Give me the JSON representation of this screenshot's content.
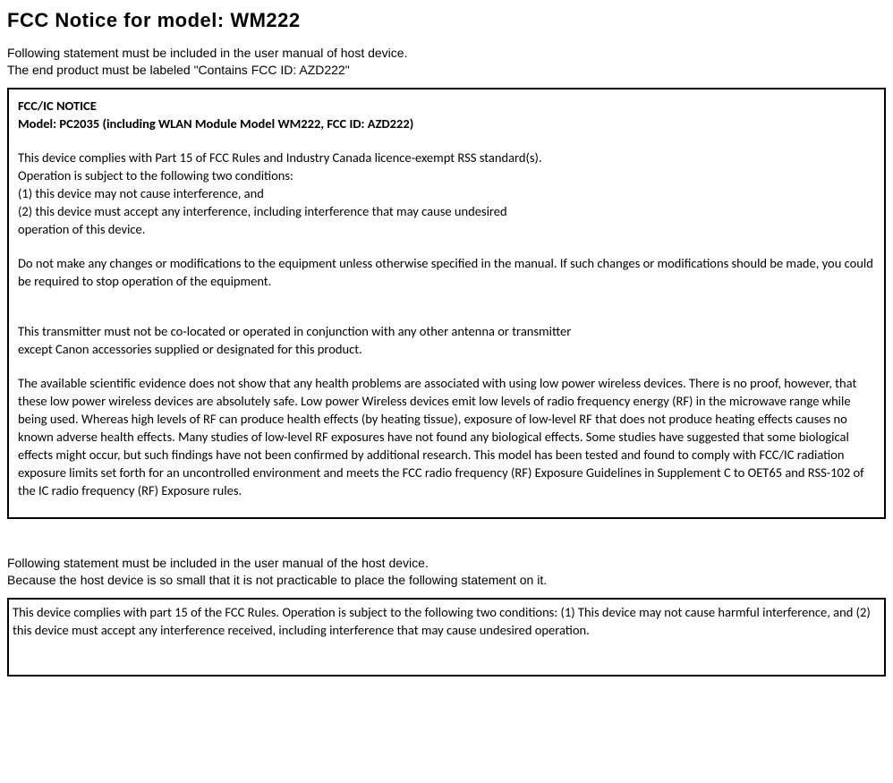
{
  "title": "FCC Notice for model: WM222",
  "intro_line1": "Following statement must be included in the user manual of host device.",
  "intro_line2": "The end product must be labeled \"Contains FCC ID: AZD222\"",
  "box1": {
    "heading1": "FCC/IC NOTICE",
    "heading2": "Model: PC2035 (including WLAN Module Model WM222, FCC ID: AZD222)",
    "p1_l1": "This device complies with Part 15 of FCC Rules and Industry Canada licence-exempt RSS standard(s).",
    "p1_l2": "Operation is subject to the following two conditions:",
    "p1_l3": "(1) this device may not cause interference, and",
    "p1_l4": "(2) this device must accept any interference, including interference that may cause undesired",
    "p1_l5": "operation of this device.",
    "p2": "Do not make any changes or modifications to the equipment unless otherwise specified in the manual. If such changes or modifications should be made, you could be required to stop operation of the equipment.",
    "p3_l1": "This transmitter must not be co-located or operated in conjunction with any other antenna or transmitter",
    "p3_l2": "except Canon accessories supplied or designated for this product.",
    "p4": "The available scientific evidence does not show that any health problems are associated with using low power wireless devices. There is no proof, however, that these low power wireless devices are absolutely safe. Low power Wireless devices emit low levels of radio frequency energy (RF) in the microwave range while being used. Whereas high levels of RF can produce health effects (by heating tissue), exposure of low-level RF that does not produce heating effects causes no known adverse health effects. Many studies of low-level RF exposures have not found any biological effects. Some studies have suggested that some biological effects might occur, but such findings have not been confirmed by additional research. This model has been tested and found to comply with FCC/IC radiation exposure limits set forth for an uncontrolled environment and meets the FCC radio frequency (RF) Exposure Guidelines in Supplement C to OET65 and RSS-102 of the IC radio frequency (RF) Exposure rules."
  },
  "intro2_line1": "Following statement must be included in the user manual of the host device.",
  "intro2_line2": "Because the host device is so small that it is not practicable to place the following statement on it.",
  "box2": {
    "text": "This device complies with part 15 of the FCC Rules. Operation is subject to the following two conditions: (1) This device may not cause harmful interference, and (2) this device must accept any interference received, including interference that may cause undesired operation."
  }
}
